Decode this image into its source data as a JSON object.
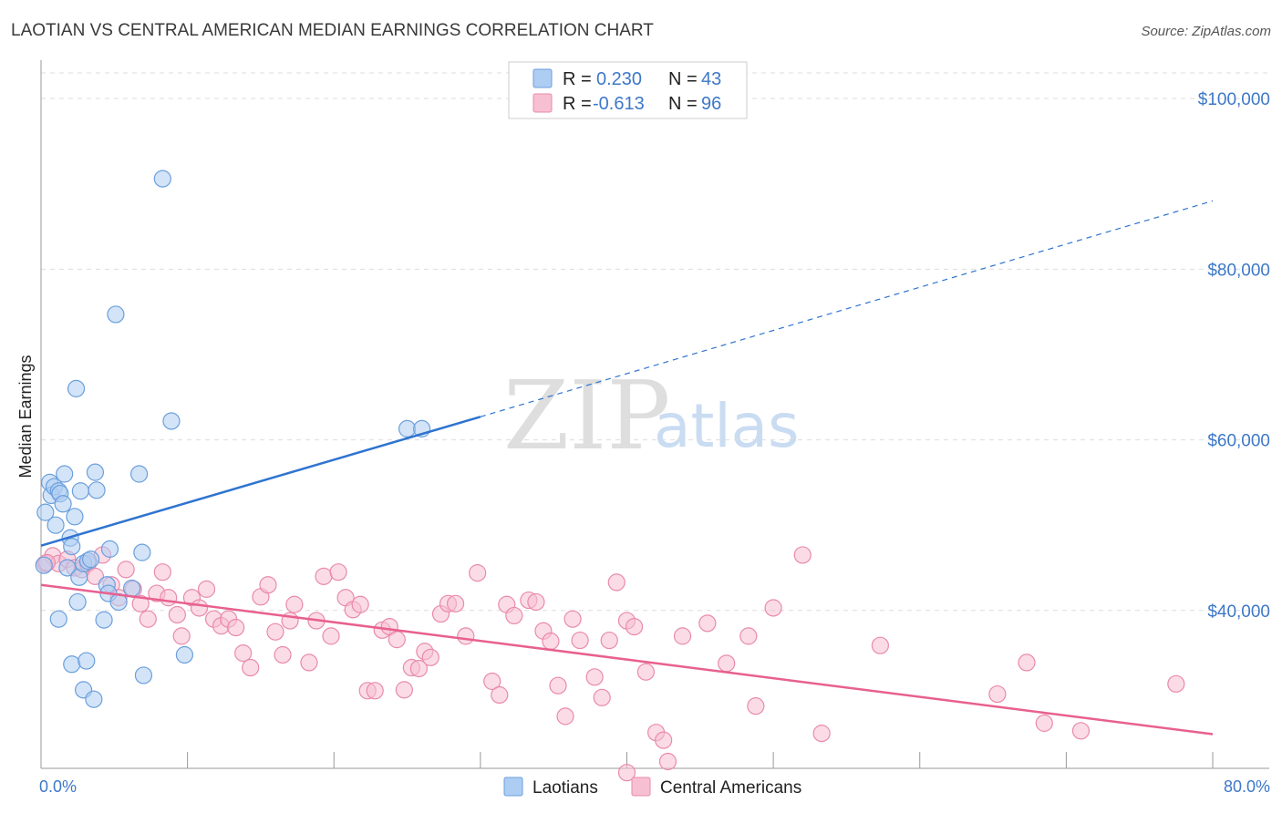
{
  "chart_data": {
    "type": "scatter",
    "title": "LAOTIAN VS CENTRAL AMERICAN MEDIAN EARNINGS CORRELATION CHART",
    "source": "Source: ZipAtlas.com",
    "ylabel": "Median Earnings",
    "xlim": [
      0,
      80
    ],
    "ylim": [
      21500,
      103000
    ],
    "x_tick_labels": {
      "min": "0.0%",
      "max": "80.0%"
    },
    "y_ticks": [
      {
        "value": 40000,
        "label": "$40,000"
      },
      {
        "value": 60000,
        "label": "$60,000"
      },
      {
        "value": 80000,
        "label": "$80,000"
      },
      {
        "value": 100000,
        "label": "$100,000"
      }
    ],
    "watermark": {
      "part1": "ZIP",
      "part2": "atlas"
    },
    "colors": {
      "laotians_fill": "#aecdf3",
      "laotians_stroke": "#6b9fdc",
      "laotians_line": "#2f74d0",
      "central_fill": "#f7c0d2",
      "central_stroke": "#e98aac",
      "central_line": "#e8608f",
      "grid": "#dddddd",
      "tick_text": "#3d78c8"
    },
    "legend": [
      {
        "r_label": "R =",
        "r_value": "0.230",
        "n_label": "N =",
        "n_value": "43"
      },
      {
        "r_label": "R =",
        "r_value": "-0.613",
        "n_label": "N =",
        "n_value": "96"
      }
    ],
    "series": [
      {
        "name": "Laotians",
        "R": 0.23,
        "N": 43,
        "trend": {
          "x0": 0,
          "y0": 47600,
          "x_solid_end": 30,
          "y_solid_end": 62700,
          "x1": 80,
          "y1": 88000
        },
        "points": [
          [
            0.3,
            51500
          ],
          [
            0.6,
            55000
          ],
          [
            0.7,
            53500
          ],
          [
            0.9,
            54500
          ],
          [
            1.0,
            50000
          ],
          [
            1.2,
            54000
          ],
          [
            1.3,
            53700
          ],
          [
            1.5,
            52500
          ],
          [
            1.6,
            56000
          ],
          [
            1.8,
            45000
          ],
          [
            2.0,
            48500
          ],
          [
            2.1,
            47500
          ],
          [
            2.3,
            51000
          ],
          [
            2.4,
            66000
          ],
          [
            2.5,
            41000
          ],
          [
            2.6,
            43900
          ],
          [
            2.7,
            54000
          ],
          [
            2.9,
            45500
          ],
          [
            3.2,
            45800
          ],
          [
            3.4,
            46000
          ],
          [
            3.7,
            56200
          ],
          [
            3.8,
            54100
          ],
          [
            4.3,
            38900
          ],
          [
            4.5,
            43000
          ],
          [
            4.6,
            42000
          ],
          [
            4.7,
            47200
          ],
          [
            5.1,
            74700
          ],
          [
            5.3,
            41000
          ],
          [
            6.2,
            42600
          ],
          [
            6.7,
            56000
          ],
          [
            6.9,
            46800
          ],
          [
            7.0,
            32400
          ],
          [
            8.3,
            90600
          ],
          [
            8.9,
            62200
          ],
          [
            9.8,
            34800
          ],
          [
            25.0,
            61300
          ],
          [
            26.0,
            61300
          ],
          [
            0.2,
            45300
          ],
          [
            1.2,
            39000
          ],
          [
            2.1,
            33700
          ],
          [
            3.1,
            34100
          ],
          [
            2.9,
            30700
          ],
          [
            3.6,
            29600
          ]
        ]
      },
      {
        "name": "Central Americans",
        "R": -0.613,
        "N": 96,
        "trend": {
          "x0": 0,
          "y0": 43000,
          "x1": 80,
          "y1": 25500
        },
        "points": [
          [
            0.3,
            45500
          ],
          [
            0.8,
            46400
          ],
          [
            1.2,
            45500
          ],
          [
            1.8,
            46000
          ],
          [
            2.3,
            45000
          ],
          [
            2.8,
            44800
          ],
          [
            3.2,
            45500
          ],
          [
            3.7,
            44000
          ],
          [
            4.2,
            46500
          ],
          [
            4.8,
            43000
          ],
          [
            5.3,
            41500
          ],
          [
            5.8,
            44800
          ],
          [
            6.3,
            42500
          ],
          [
            6.8,
            40800
          ],
          [
            7.3,
            39000
          ],
          [
            7.9,
            42000
          ],
          [
            8.3,
            44500
          ],
          [
            8.7,
            41500
          ],
          [
            9.3,
            39500
          ],
          [
            9.6,
            37000
          ],
          [
            10.3,
            41500
          ],
          [
            10.8,
            40300
          ],
          [
            11.3,
            42500
          ],
          [
            11.8,
            39000
          ],
          [
            12.3,
            38200
          ],
          [
            12.8,
            39000
          ],
          [
            13.3,
            38000
          ],
          [
            13.8,
            35000
          ],
          [
            14.3,
            33300
          ],
          [
            15.0,
            41600
          ],
          [
            15.5,
            43000
          ],
          [
            16.0,
            37500
          ],
          [
            16.5,
            34800
          ],
          [
            17.0,
            38800
          ],
          [
            17.3,
            40700
          ],
          [
            18.3,
            33900
          ],
          [
            18.8,
            38800
          ],
          [
            19.3,
            44000
          ],
          [
            19.8,
            37000
          ],
          [
            20.3,
            44500
          ],
          [
            20.8,
            41500
          ],
          [
            21.3,
            40100
          ],
          [
            21.8,
            40700
          ],
          [
            22.3,
            30600
          ],
          [
            22.8,
            30600
          ],
          [
            23.3,
            37700
          ],
          [
            23.8,
            38100
          ],
          [
            24.3,
            36600
          ],
          [
            24.8,
            30700
          ],
          [
            25.3,
            33300
          ],
          [
            25.8,
            33200
          ],
          [
            26.2,
            35200
          ],
          [
            26.6,
            34500
          ],
          [
            27.3,
            39600
          ],
          [
            27.8,
            40800
          ],
          [
            28.3,
            40800
          ],
          [
            29.0,
            37000
          ],
          [
            29.8,
            44400
          ],
          [
            30.8,
            31700
          ],
          [
            31.3,
            30100
          ],
          [
            31.8,
            40700
          ],
          [
            32.3,
            39400
          ],
          [
            33.3,
            41200
          ],
          [
            33.8,
            41000
          ],
          [
            34.3,
            37600
          ],
          [
            34.8,
            36400
          ],
          [
            35.3,
            31200
          ],
          [
            35.8,
            27600
          ],
          [
            36.3,
            39000
          ],
          [
            36.8,
            36500
          ],
          [
            37.8,
            32200
          ],
          [
            38.3,
            29800
          ],
          [
            38.8,
            36500
          ],
          [
            39.3,
            43300
          ],
          [
            40.0,
            38800
          ],
          [
            40.5,
            38100
          ],
          [
            41.3,
            32800
          ],
          [
            42.0,
            25700
          ],
          [
            42.5,
            24800
          ],
          [
            42.8,
            22300
          ],
          [
            43.8,
            37000
          ],
          [
            45.5,
            38500
          ],
          [
            46.8,
            33800
          ],
          [
            48.3,
            37000
          ],
          [
            48.8,
            28800
          ],
          [
            50.0,
            40300
          ],
          [
            52.0,
            46500
          ],
          [
            53.3,
            25600
          ],
          [
            57.3,
            35900
          ],
          [
            65.3,
            30200
          ],
          [
            67.3,
            33900
          ],
          [
            68.5,
            26800
          ],
          [
            71.0,
            25900
          ],
          [
            77.5,
            31400
          ],
          [
            40.0,
            21000
          ],
          [
            0.4,
            45600
          ]
        ]
      }
    ]
  }
}
